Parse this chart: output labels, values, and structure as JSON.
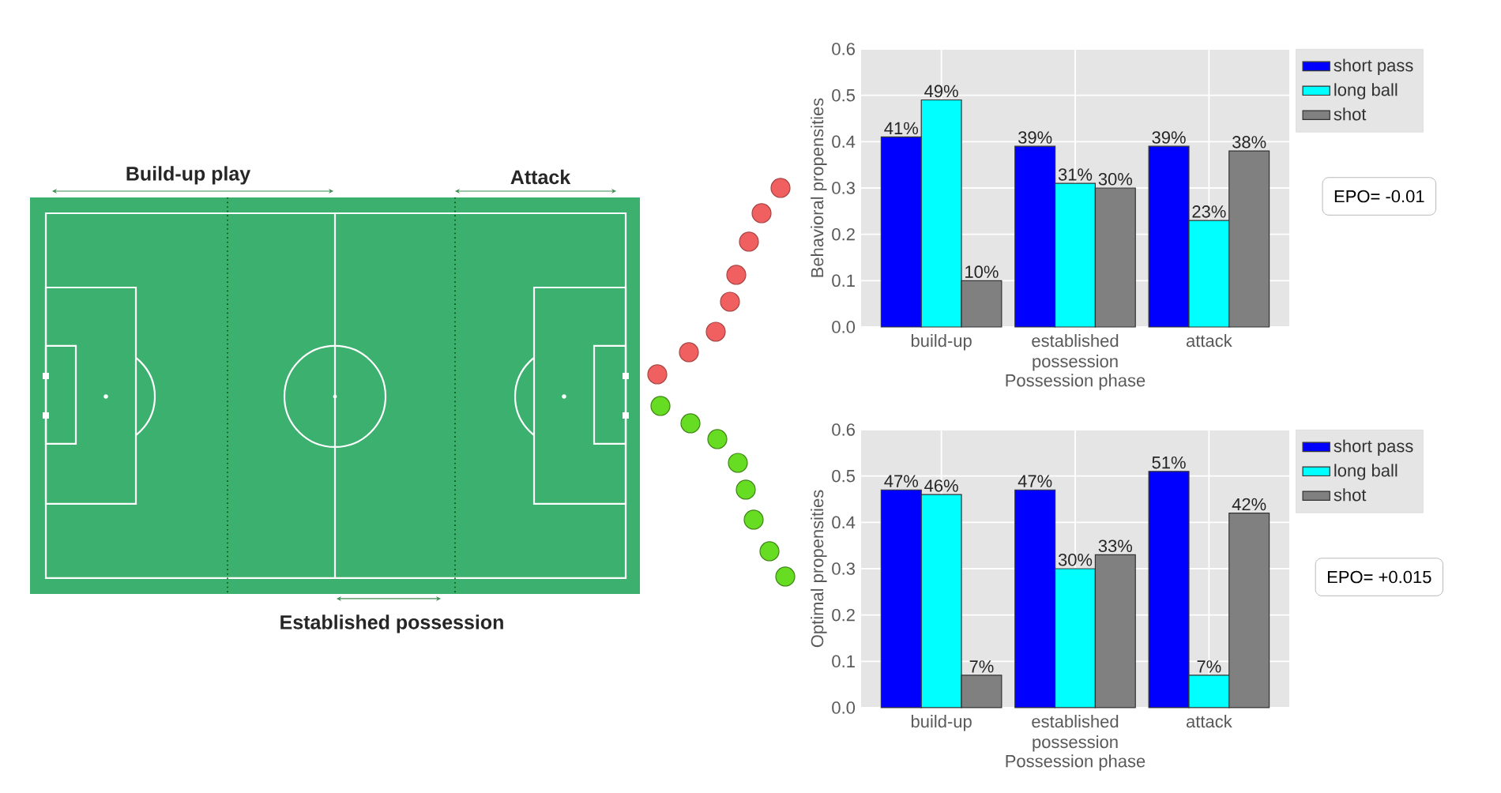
{
  "chart_data": [
    {
      "type": "other",
      "annotations": [
        "Build-up play",
        "Attack",
        "Established possession"
      ]
    },
    {
      "type": "bar",
      "xlabel": "Possession phase",
      "ylabel": "Behavioral propensities",
      "categories": [
        "build-up",
        "established possession",
        "attack"
      ],
      "series": [
        {
          "name": "short pass",
          "color": "#0000ff",
          "values": [
            0.41,
            0.39,
            0.39
          ],
          "value_labels": [
            "41%",
            "39%",
            "39%"
          ]
        },
        {
          "name": "long ball",
          "color": "#00ffff",
          "values": [
            0.49,
            0.31,
            0.23
          ],
          "value_labels": [
            "49%",
            "31%",
            "23%"
          ]
        },
        {
          "name": "shot",
          "color": "#808080",
          "values": [
            0.1,
            0.3,
            0.38
          ],
          "value_labels": [
            "10%",
            "30%",
            "38%"
          ]
        }
      ],
      "ylim": [
        0,
        0.6
      ],
      "yticks": [
        {
          "value": 0,
          "label": "0.0"
        },
        0.1,
        0.2,
        0.3,
        0.4,
        0.5,
        0.6
      ],
      "grid": true,
      "legend": "top right",
      "annotations": [
        "EPO= -0.01"
      ]
    },
    {
      "type": "bar",
      "xlabel": "Possession phase",
      "ylabel": "Optimal propensities",
      "categories": [
        "build-up",
        "established possession",
        "attack"
      ],
      "series": [
        {
          "name": "short pass",
          "color": "#0000ff",
          "values": [
            0.47,
            0.47,
            0.51
          ],
          "value_labels": [
            "47%",
            "47%",
            "51%"
          ]
        },
        {
          "name": "long ball",
          "color": "#00ffff",
          "values": [
            0.46,
            0.3,
            0.07
          ],
          "value_labels": [
            "46%",
            "30%",
            "7%"
          ]
        },
        {
          "name": "shot",
          "color": "#808080",
          "values": [
            0.07,
            0.33,
            0.42
          ],
          "value_labels": [
            "7%",
            "33%",
            "42%"
          ]
        }
      ],
      "ylim": [
        0,
        0.6
      ],
      "yticks": [
        {
          "value": 0,
          "label": "0.0"
        },
        0.1,
        0.2,
        0.3,
        0.4,
        0.5,
        0.6
      ],
      "grid": true,
      "legend": "top right",
      "annotations": [
        "EPO= +0.015"
      ]
    }
  ]
}
